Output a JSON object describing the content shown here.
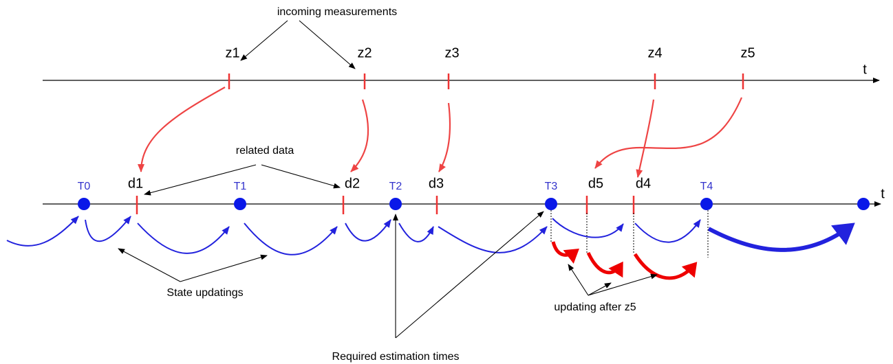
{
  "top_axis": {
    "label": "t",
    "measurements": [
      "z1",
      "z2",
      "z3",
      "z4",
      "z5"
    ]
  },
  "bottom_axis": {
    "label": "t",
    "times": [
      "T0",
      "T1",
      "T2",
      "T3",
      "T4"
    ],
    "data": [
      "d1",
      "d2",
      "d3",
      "d5",
      "d4"
    ]
  },
  "annotations": {
    "incoming": "incoming measurements",
    "related": "related data",
    "state": "State updatings",
    "required": "Required estimation times",
    "after": "updating after z5"
  }
}
